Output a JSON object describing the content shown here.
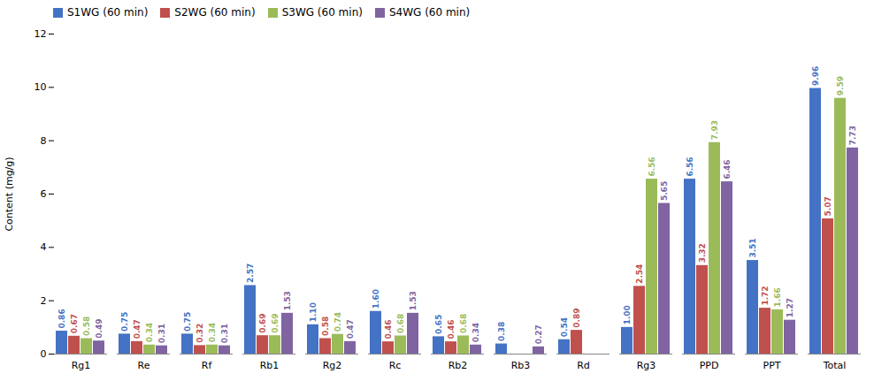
{
  "chart_data": {
    "type": "bar",
    "categories": [
      "Rg1",
      "Re",
      "Rf",
      "Rb1",
      "Rg2",
      "Rc",
      "Rb2",
      "Rb3",
      "Rd",
      "Rg3",
      "PPD",
      "PPT",
      "Total"
    ],
    "series": [
      {
        "name": "S1WG (60 min)",
        "color": "#4472C4",
        "values": [
          0.86,
          0.75,
          0.75,
          2.57,
          1.1,
          1.6,
          0.65,
          0.38,
          0.54,
          1.0,
          6.56,
          3.51,
          9.96
        ],
        "value_labels": [
          "0.86",
          "0.75",
          "0.75",
          "2.57",
          "1.10",
          "1.60",
          "0.65",
          "0.38",
          "0.54",
          "1.00",
          "6.56",
          "3.51",
          "9.96"
        ]
      },
      {
        "name": "S2WG (60 min)",
        "color": "#C0504D",
        "values": [
          0.67,
          0.47,
          0.32,
          0.69,
          0.58,
          0.46,
          0.46,
          0.0,
          0.89,
          2.54,
          3.32,
          1.72,
          5.07
        ],
        "value_labels": [
          "0.67",
          "0.47",
          "0.32",
          "0.69",
          "0.58",
          "0.46",
          "0.46",
          null,
          "0.89",
          "2.54",
          "3.32",
          "1.72",
          "5.07"
        ]
      },
      {
        "name": "S3WG (60 min)",
        "color": "#9BBB59",
        "values": [
          0.58,
          0.34,
          0.34,
          0.69,
          0.74,
          0.68,
          0.68,
          0.0,
          0.0,
          6.56,
          7.93,
          1.66,
          9.59
        ],
        "value_labels": [
          "0.58",
          "0.34",
          "0.34",
          "0.69",
          "0.74",
          "0.68",
          "0.68",
          null,
          null,
          "6.56",
          "7.93",
          "1.66",
          "9.59"
        ]
      },
      {
        "name": "S4WG (60 min)",
        "color": "#8064A2",
        "values": [
          0.49,
          0.31,
          0.31,
          1.53,
          0.47,
          1.53,
          0.34,
          0.27,
          0.0,
          5.65,
          6.46,
          1.27,
          7.73
        ],
        "value_labels": [
          "0.49",
          "0.31",
          "0.31",
          "1.53",
          "0.47",
          "1.53",
          "0.34",
          "0.27",
          null,
          "5.65",
          "6.46",
          "1.27",
          "7.73"
        ]
      }
    ],
    "ylabel": "Content (mg/g)",
    "ylim": [
      0,
      12
    ],
    "yticks": [
      0,
      2,
      4,
      6,
      8,
      10,
      12
    ],
    "grid": false,
    "legend": "upper left",
    "data_labels": true
  }
}
